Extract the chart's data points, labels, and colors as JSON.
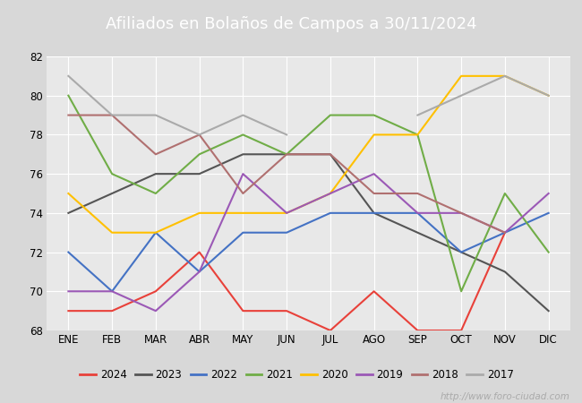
{
  "title": "Afiliados en Bolaños de Campos a 30/11/2024",
  "title_color": "#ffffff",
  "title_bg_color": "#4a86c8",
  "ylim": [
    68,
    82
  ],
  "yticks": [
    68,
    70,
    72,
    74,
    76,
    78,
    80,
    82
  ],
  "months": [
    "ENE",
    "FEB",
    "MAR",
    "ABR",
    "MAY",
    "JUN",
    "JUL",
    "AGO",
    "SEP",
    "OCT",
    "NOV",
    "DIC"
  ],
  "series": {
    "2024": {
      "color": "#e8413a",
      "data": [
        69,
        69,
        70,
        72,
        69,
        69,
        68,
        70,
        68,
        68,
        73,
        null
      ]
    },
    "2023": {
      "color": "#555555",
      "data": [
        74,
        75,
        76,
        76,
        77,
        77,
        77,
        74,
        73,
        72,
        71,
        69
      ]
    },
    "2022": {
      "color": "#4472c4",
      "data": [
        72,
        70,
        73,
        71,
        73,
        73,
        74,
        74,
        74,
        72,
        73,
        74
      ]
    },
    "2021": {
      "color": "#70ad47",
      "data": [
        80,
        76,
        75,
        77,
        78,
        77,
        79,
        79,
        78,
        70,
        75,
        72
      ]
    },
    "2020": {
      "color": "#ffc000",
      "data": [
        75,
        73,
        73,
        74,
        74,
        74,
        75,
        78,
        78,
        81,
        81,
        80
      ]
    },
    "2019": {
      "color": "#9b59b6",
      "data": [
        70,
        70,
        69,
        71,
        76,
        74,
        75,
        76,
        74,
        74,
        73,
        75
      ]
    },
    "2018": {
      "color": "#b07070",
      "data": [
        79,
        79,
        77,
        78,
        75,
        77,
        77,
        75,
        75,
        74,
        73,
        null
      ]
    },
    "2017": {
      "color": "#aaaaaa",
      "data": [
        81,
        79,
        79,
        78,
        79,
        78,
        null,
        null,
        79,
        80,
        81,
        80
      ]
    }
  },
  "legend_order": [
    "2024",
    "2023",
    "2022",
    "2021",
    "2020",
    "2019",
    "2018",
    "2017"
  ],
  "fig_bg_color": "#d8d8d8",
  "plot_bg_color": "#e8e8e8",
  "grid_color": "#ffffff",
  "watermark": "http://www.foro-ciudad.com",
  "watermark_color": "#aaaaaa"
}
